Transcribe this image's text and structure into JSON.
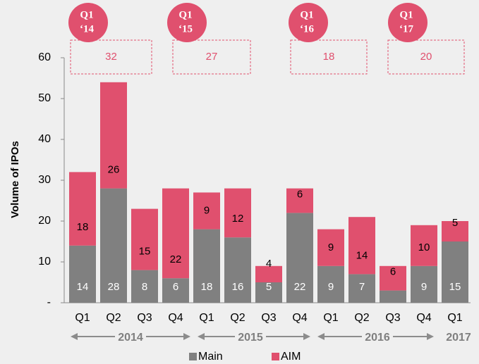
{
  "chart_data": {
    "type": "stacked_bar",
    "y_label": "Volume of IPOs",
    "categories": [
      "Q1",
      "Q2",
      "Q3",
      "Q4",
      "Q1",
      "Q2",
      "Q3",
      "Q4",
      "Q1",
      "Q2",
      "Q3",
      "Q4",
      "Q1"
    ],
    "year_labels": [
      "2014",
      "2015",
      "2016",
      "2017"
    ],
    "series": [
      {
        "name": "Main",
        "color": "#808080",
        "values": [
          14,
          28,
          8,
          6,
          18,
          16,
          5,
          22,
          9,
          7,
          3,
          9,
          15
        ]
      },
      {
        "name": "AIM",
        "color": "#e0506e",
        "values": [
          18,
          26,
          15,
          22,
          9,
          12,
          4,
          6,
          9,
          14,
          6,
          10,
          5
        ]
      }
    ],
    "ylim": [
      0,
      60
    ],
    "yticks": [
      {
        "value": 0,
        "label": "-"
      },
      10,
      20,
      30,
      40,
      50,
      60
    ],
    "annotations": [
      {
        "lines": [
          "Q1",
          "‘14"
        ],
        "value": 32
      },
      {
        "lines": [
          "Q1",
          "‘15"
        ],
        "value": 27
      },
      {
        "lines": [
          "Q1",
          "‘16"
        ],
        "value": 18
      },
      {
        "lines": [
          "Q1",
          "‘17"
        ],
        "value": 20
      }
    ],
    "legend": "bottom"
  }
}
